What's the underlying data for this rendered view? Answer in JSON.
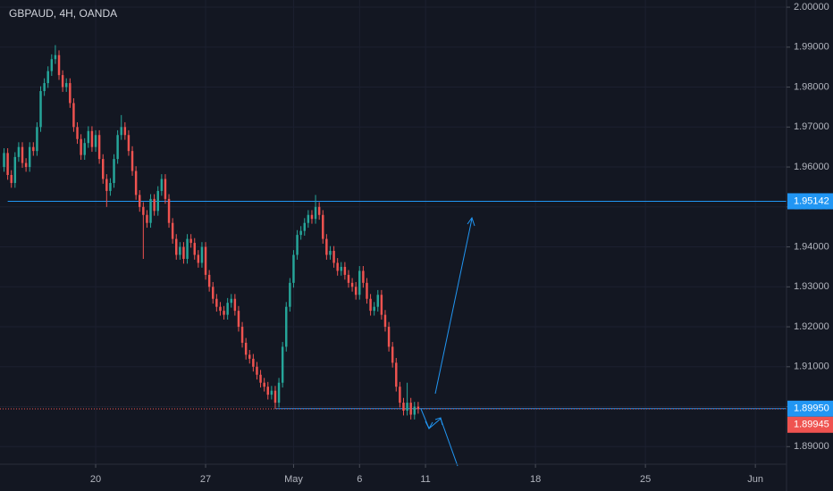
{
  "chart_data": {
    "type": "candlestick",
    "title": "GBPAUD, 4H, OANDA",
    "up_color": "#26a69a",
    "down_color": "#ef5350",
    "grid": true,
    "xlim": [
      -0.1,
      214.5
    ],
    "ylim": [
      1.8856,
      2.0018
    ],
    "xticks": [
      {
        "value": 26,
        "label": "20"
      },
      {
        "value": 56,
        "label": "27"
      },
      {
        "value": 80,
        "label": "May"
      },
      {
        "value": 98,
        "label": "6"
      },
      {
        "value": 116,
        "label": "11"
      },
      {
        "value": 146,
        "label": "18"
      },
      {
        "value": 176,
        "label": "25"
      },
      {
        "value": 206,
        "label": "Jun"
      }
    ],
    "yticks": [
      {
        "value": 2.0,
        "label": "2.00000"
      },
      {
        "value": 1.99,
        "label": "1.99000"
      },
      {
        "value": 1.98,
        "label": "1.98000"
      },
      {
        "value": 1.97,
        "label": "1.97000"
      },
      {
        "value": 1.96,
        "label": "1.96000"
      },
      {
        "value": 1.95,
        "label": "1.95000"
      },
      {
        "value": 1.94,
        "label": "1.94000"
      },
      {
        "value": 1.93,
        "label": "1.93000"
      },
      {
        "value": 1.92,
        "label": "1.92000"
      },
      {
        "value": 1.91,
        "label": "1.91000"
      },
      {
        "value": 1.9,
        "label": "1.90000"
      },
      {
        "value": 1.89,
        "label": "1.89000"
      }
    ],
    "levels": [
      {
        "value": 1.95142,
        "label": "1.95142",
        "color": "#2196f3",
        "start": 2
      },
      {
        "value": 1.8995,
        "label": "1.89950",
        "color": "#2196f3",
        "start": 75
      },
      {
        "value": 1.89945,
        "label": "1.89945",
        "color": "#ef5350",
        "dashed": true
      }
    ],
    "x": [
      1,
      2,
      3,
      4,
      5,
      6,
      7,
      8,
      9,
      10,
      11,
      12,
      13,
      14,
      15,
      16,
      17,
      18,
      19,
      20,
      21,
      22,
      23,
      24,
      25,
      26,
      27,
      28,
      29,
      30,
      31,
      32,
      33,
      34,
      35,
      36,
      37,
      38,
      39,
      40,
      41,
      42,
      43,
      44,
      45,
      46,
      47,
      48,
      49,
      50,
      51,
      52,
      53,
      54,
      55,
      56,
      57,
      58,
      59,
      60,
      61,
      62,
      63,
      64,
      65,
      66,
      67,
      68,
      69,
      70,
      71,
      72,
      73,
      74,
      75,
      76,
      77,
      78,
      79,
      80,
      81,
      82,
      83,
      84,
      85,
      86,
      87,
      88,
      89,
      90,
      91,
      92,
      93,
      94,
      95,
      96,
      97,
      98,
      99,
      100,
      101,
      102,
      103,
      104,
      105,
      106,
      107,
      108,
      109,
      110,
      111,
      112,
      113,
      114
    ],
    "open": [
      1.96,
      1.9635,
      1.958,
      1.956,
      1.9625,
      1.965,
      1.961,
      1.96,
      1.965,
      1.964,
      1.97,
      1.979,
      1.981,
      1.984,
      1.987,
      1.988,
      1.983,
      1.98,
      1.981,
      1.976,
      1.97,
      1.967,
      1.963,
      1.966,
      1.969,
      1.965,
      1.968,
      1.962,
      1.957,
      1.954,
      1.956,
      1.962,
      1.968,
      1.97,
      1.968,
      1.964,
      1.959,
      1.953,
      1.95,
      1.948,
      1.946,
      1.952,
      1.949,
      1.954,
      1.957,
      1.952,
      1.946,
      1.942,
      1.938,
      1.94,
      1.937,
      1.942,
      1.941,
      1.938,
      1.936,
      1.94,
      1.933,
      1.93,
      1.927,
      1.925,
      1.924,
      1.923,
      1.926,
      1.927,
      1.924,
      1.92,
      1.916,
      1.913,
      1.912,
      1.91,
      1.908,
      1.906,
      1.905,
      1.903,
      1.904,
      1.901,
      1.906,
      1.915,
      1.925,
      1.931,
      1.938,
      1.943,
      1.944,
      1.946,
      1.948,
      1.947,
      1.95,
      1.948,
      1.942,
      1.938,
      1.939,
      1.936,
      1.934,
      1.935,
      1.933,
      1.931,
      1.93,
      1.928,
      1.934,
      1.931,
      1.927,
      1.924,
      1.925,
      1.928,
      1.923,
      1.92,
      1.915,
      1.911,
      1.905,
      1.901,
      1.899,
      1.901,
      1.898,
      1.9
    ],
    "high": [
      1.9647,
      1.9647,
      1.9592,
      1.9637,
      1.9662,
      1.9662,
      1.9622,
      1.9662,
      1.9662,
      1.9712,
      1.9802,
      1.9822,
      1.9852,
      1.9882,
      1.9905,
      1.9892,
      1.9842,
      1.9822,
      1.9822,
      1.9772,
      1.9712,
      1.9682,
      1.9672,
      1.9702,
      1.9702,
      1.9692,
      1.9692,
      1.9632,
      1.9582,
      1.9572,
      1.9632,
      1.9692,
      1.973,
      1.9712,
      1.9692,
      1.9652,
      1.9602,
      1.9542,
      1.9512,
      1.9492,
      1.9532,
      1.9532,
      1.9552,
      1.9582,
      1.9582,
      1.9532,
      1.9472,
      1.9432,
      1.9412,
      1.9412,
      1.9432,
      1.9432,
      1.9422,
      1.9392,
      1.9412,
      1.9412,
      1.9342,
      1.9312,
      1.9282,
      1.9262,
      1.9252,
      1.9272,
      1.9282,
      1.9282,
      1.9252,
      1.9212,
      1.9172,
      1.9142,
      1.9132,
      1.9112,
      1.9092,
      1.9072,
      1.9062,
      1.9052,
      1.9052,
      1.9072,
      1.9162,
      1.9262,
      1.9322,
      1.9392,
      1.9442,
      1.9452,
      1.9472,
      1.9492,
      1.9492,
      1.953,
      1.9512,
      1.9492,
      1.9432,
      1.9402,
      1.9402,
      1.9372,
      1.9362,
      1.9362,
      1.9342,
      1.9322,
      1.9312,
      1.9352,
      1.9352,
      1.9322,
      1.9282,
      1.9262,
      1.9292,
      1.9292,
      1.9242,
      1.9212,
      1.9162,
      1.9122,
      1.9062,
      1.9022,
      1.906,
      1.9022,
      1.9012,
      1.9012
    ],
    "low": [
      1.9588,
      1.9568,
      1.9548,
      1.9548,
      1.9613,
      1.9598,
      1.9588,
      1.9588,
      1.9628,
      1.9628,
      1.9688,
      1.9778,
      1.9798,
      1.9828,
      1.9858,
      1.9818,
      1.9788,
      1.9788,
      1.9748,
      1.9688,
      1.9658,
      1.9618,
      1.9618,
      1.9648,
      1.9638,
      1.9638,
      1.9608,
      1.9558,
      1.95,
      1.9528,
      1.9548,
      1.9608,
      1.9668,
      1.9668,
      1.9628,
      1.9578,
      1.9518,
      1.9488,
      1.937,
      1.9448,
      1.9448,
      1.9478,
      1.9478,
      1.9528,
      1.9508,
      1.9448,
      1.9408,
      1.9368,
      1.9368,
      1.9358,
      1.9358,
      1.9398,
      1.9368,
      1.9348,
      1.9348,
      1.9318,
      1.9288,
      1.9258,
      1.9238,
      1.9228,
      1.9218,
      1.9218,
      1.9248,
      1.9228,
      1.9188,
      1.9148,
      1.9118,
      1.9108,
      1.9088,
      1.9068,
      1.9048,
      1.9038,
      1.9018,
      1.9018,
      1.8995,
      1.8998,
      1.9048,
      1.9138,
      1.9238,
      1.9298,
      1.9368,
      1.9418,
      1.9428,
      1.9448,
      1.9458,
      1.9458,
      1.9468,
      1.9408,
      1.9368,
      1.9368,
      1.9348,
      1.9328,
      1.9328,
      1.9318,
      1.9298,
      1.9288,
      1.9268,
      1.9268,
      1.9298,
      1.9258,
      1.9228,
      1.9228,
      1.9238,
      1.9218,
      1.9188,
      1.9138,
      1.9098,
      1.9038,
      1.8998,
      1.8978,
      1.8978,
      1.8968,
      1.8968,
      1.89825
    ],
    "close": [
      1.9635,
      1.958,
      1.956,
      1.9625,
      1.965,
      1.961,
      1.96,
      1.965,
      1.964,
      1.97,
      1.979,
      1.981,
      1.984,
      1.987,
      1.988,
      1.983,
      1.98,
      1.981,
      1.976,
      1.97,
      1.967,
      1.963,
      1.966,
      1.969,
      1.965,
      1.968,
      1.962,
      1.957,
      1.954,
      1.956,
      1.962,
      1.968,
      1.97,
      1.968,
      1.964,
      1.959,
      1.953,
      1.95,
      1.948,
      1.946,
      1.952,
      1.949,
      1.954,
      1.957,
      1.952,
      1.946,
      1.942,
      1.938,
      1.94,
      1.937,
      1.942,
      1.941,
      1.938,
      1.936,
      1.94,
      1.933,
      1.93,
      1.927,
      1.925,
      1.924,
      1.923,
      1.926,
      1.927,
      1.924,
      1.92,
      1.916,
      1.913,
      1.912,
      1.91,
      1.908,
      1.906,
      1.905,
      1.903,
      1.904,
      1.901,
      1.906,
      1.915,
      1.925,
      1.931,
      1.938,
      1.943,
      1.944,
      1.946,
      1.948,
      1.947,
      1.95,
      1.948,
      1.942,
      1.938,
      1.939,
      1.936,
      1.934,
      1.935,
      1.933,
      1.931,
      1.93,
      1.928,
      1.934,
      1.931,
      1.927,
      1.924,
      1.925,
      1.928,
      1.923,
      1.92,
      1.915,
      1.911,
      1.905,
      1.901,
      1.899,
      1.901,
      1.898,
      1.9,
      1.89945
    ]
  }
}
